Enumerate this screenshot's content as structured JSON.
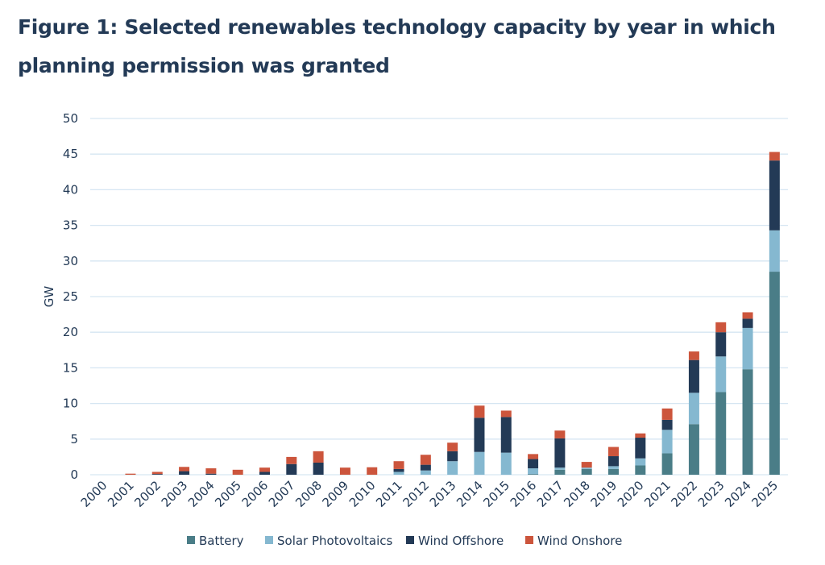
{
  "chart_data": {
    "type": "bar",
    "stacked": true,
    "title": "Figure 1: Selected renewables technology capacity by year in which planning permission was granted",
    "xlabel": "",
    "ylabel": "GW",
    "ylim": [
      0,
      50
    ],
    "yticks": [
      0,
      5,
      10,
      15,
      20,
      25,
      30,
      35,
      40,
      45,
      50
    ],
    "grid": true,
    "legend_placement": "bottom",
    "categories": [
      "2000",
      "2001",
      "2002",
      "2003",
      "2004",
      "2005",
      "2006",
      "2007",
      "2008",
      "2009",
      "2010",
      "2011",
      "2012",
      "2013",
      "2014",
      "2015",
      "2016",
      "2017",
      "2018",
      "2019",
      "2020",
      "2021",
      "2022",
      "2023",
      "2024",
      "2025"
    ],
    "series": [
      {
        "name": "Battery",
        "color": "#4a7d87",
        "values": [
          0,
          0,
          0,
          0,
          0,
          0,
          0,
          0,
          0,
          0,
          0,
          0,
          0,
          0,
          0,
          0,
          0.1,
          0.7,
          0.8,
          0.8,
          1.3,
          3.0,
          7.1,
          11.6,
          14.8,
          28.5
        ]
      },
      {
        "name": "Solar Photovoltaics",
        "color": "#85b8d0",
        "values": [
          0,
          0,
          0,
          0,
          0,
          0,
          0,
          0,
          0,
          0,
          0,
          0.4,
          0.6,
          1.9,
          3.2,
          3.1,
          0.8,
          0.3,
          0.2,
          0.4,
          1.0,
          3.3,
          4.4,
          5.0,
          5.8,
          5.8
        ]
      },
      {
        "name": "Wind Offshore",
        "color": "#233a56",
        "values": [
          0,
          0,
          0.1,
          0.5,
          0.15,
          0,
          0.4,
          1.5,
          1.7,
          0,
          0,
          0.4,
          0.8,
          1.4,
          4.8,
          5.0,
          1.3,
          4.1,
          0,
          1.4,
          2.9,
          1.4,
          4.6,
          3.4,
          1.3,
          9.8
        ]
      },
      {
        "name": "Wind Onshore",
        "color": "#cc553c",
        "values": [
          0,
          0.15,
          0.3,
          0.6,
          0.75,
          0.7,
          0.6,
          1.0,
          1.6,
          1.0,
          1.05,
          1.1,
          1.4,
          1.2,
          1.7,
          0.9,
          0.7,
          1.1,
          0.8,
          1.3,
          0.6,
          1.6,
          1.2,
          1.4,
          0.9,
          1.2
        ]
      }
    ]
  }
}
